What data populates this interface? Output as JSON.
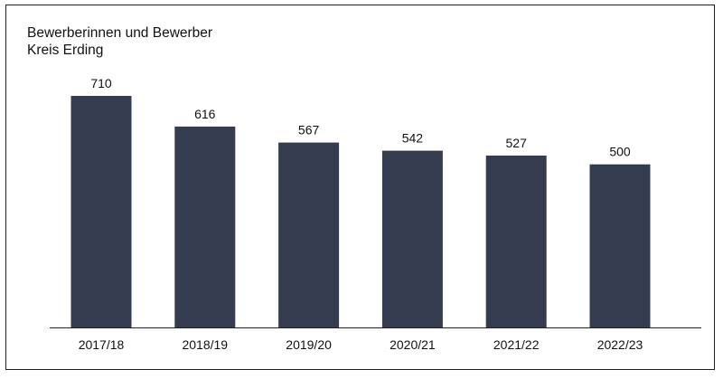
{
  "chart_data": {
    "type": "bar",
    "title": "Bewerberinnen und Bewerber",
    "subtitle": "Kreis Erding",
    "categories": [
      "2017/18",
      "2018/19",
      "2019/20",
      "2020/21",
      "2021/22",
      "2022/23"
    ],
    "values": [
      710,
      616,
      567,
      542,
      527,
      500
    ],
    "data_labels": [
      "710",
      "616",
      "567",
      "542",
      "527",
      "500"
    ],
    "xlabel": "",
    "ylabel": "",
    "ylim": [
      0,
      710
    ],
    "grid": false,
    "legend": "none",
    "bar_color": "#363c4f",
    "axis_color": "#222222"
  }
}
